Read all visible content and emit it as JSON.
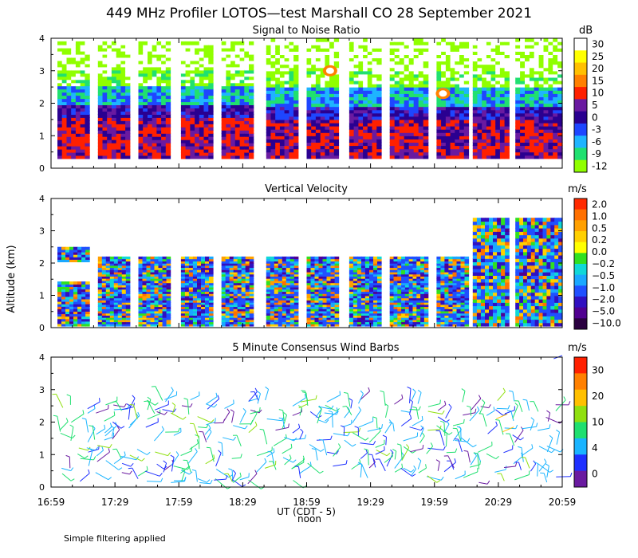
{
  "title": "449 MHz Profiler LOTOS—test Marshall CO 28 September 2021",
  "footnote": "Simple filtering applied",
  "y_axis_label": "Altitude (km)",
  "x_axis": {
    "label": "UT  (CDT - 5)",
    "noon_label": "noon",
    "ticks": [
      "16:59",
      "17:29",
      "17:59",
      "18:29",
      "18:59",
      "19:29",
      "19:59",
      "20:29",
      "20:59"
    ]
  },
  "chart_data": [
    {
      "type": "heatmap",
      "title": "Signal to Noise Ratio",
      "units": "dB",
      "ylabel": "Altitude (km)",
      "ylim": [
        0,
        4
      ],
      "yticks": [
        "0",
        "1",
        "2",
        "3",
        "4"
      ],
      "colorbar_labels": [
        "30",
        "25",
        "20",
        "15",
        "10",
        "5",
        "0",
        "-3",
        "-6",
        "-9",
        "-12"
      ],
      "colorbar_colors": [
        "#ffffff",
        "#ffff00",
        "#ffc000",
        "#ff8000",
        "#ff2000",
        "#6a1aa0",
        "#2a0090",
        "#1e46ff",
        "#1eb4ff",
        "#20e070",
        "#90ff00"
      ],
      "time_segments_ut": [
        [
          "17:02",
          "17:17"
        ],
        [
          "17:21",
          "17:36"
        ],
        [
          "17:40",
          "17:55"
        ],
        [
          "18:00",
          "18:15"
        ],
        [
          "18:19",
          "18:34"
        ],
        [
          "18:40",
          "18:55"
        ],
        [
          "18:59",
          "19:14"
        ],
        [
          "19:19",
          "19:34"
        ],
        [
          "19:38",
          "19:56"
        ],
        [
          "20:00",
          "20:15"
        ],
        [
          "20:17",
          "20:34"
        ],
        [
          "20:37",
          "20:59"
        ]
      ],
      "notes": "Strong returns (red/purple, 5–15 dB) below ~2 km; weaker (green, -9 to -3 dB) near 2–2.5 km; bright peaks up to 25–30 dB near 3 km around 19:10 UT and near 2.3 km around 20:03 UT"
    },
    {
      "type": "heatmap",
      "title": "Vertical Velocity",
      "units": "m/s",
      "ylabel": "Altitude (km)",
      "ylim": [
        0,
        4
      ],
      "yticks": [
        "0",
        "1",
        "2",
        "3",
        "4"
      ],
      "colorbar_labels": [
        "2.0",
        "1.0",
        "0.5",
        "0.2",
        "0.0",
        "−0.2",
        "−0.5",
        "−1.0",
        "−2.0",
        "−5.0",
        "−10.0"
      ],
      "colorbar_colors": [
        "#ff2a00",
        "#ff7000",
        "#ffa000",
        "#ffd000",
        "#ffff00",
        "#30e020",
        "#10d8d8",
        "#1aa8ff",
        "#2050ff",
        "#3010c0",
        "#500090",
        "#2a0040"
      ],
      "notes": "Mostly downward (blue/purple) and near-zero (cyan/green) motion with upward (orange/red) cells up to ~2 m/s; data mainly below 2.5 km, extending to ~3.5 km after 20:00 UT"
    },
    {
      "type": "scatter",
      "subtype": "wind_barbs",
      "title": "5 Minute Consensus Wind Barbs",
      "units": "m/s",
      "ylabel": "Altitude (km)",
      "ylim": [
        0,
        4
      ],
      "yticks": [
        "0",
        "1",
        "2",
        "3",
        "4"
      ],
      "colorbar_labels": [
        "30",
        "20",
        "10",
        "4",
        "0"
      ],
      "colorbar_colors": [
        "#ff2000",
        "#ff8000",
        "#ffc000",
        "#90e010",
        "#20e070",
        "#1ab4ff",
        "#1e30ff",
        "#6a1aa0"
      ],
      "notes": "Wind barbs mostly 4–10 m/s (blue/green) below ~2.7 km; a few 10–20 m/s (yellow/orange) near 2 km around 20:30 UT; isolated barb near 4 km at 20:59 UT"
    }
  ]
}
